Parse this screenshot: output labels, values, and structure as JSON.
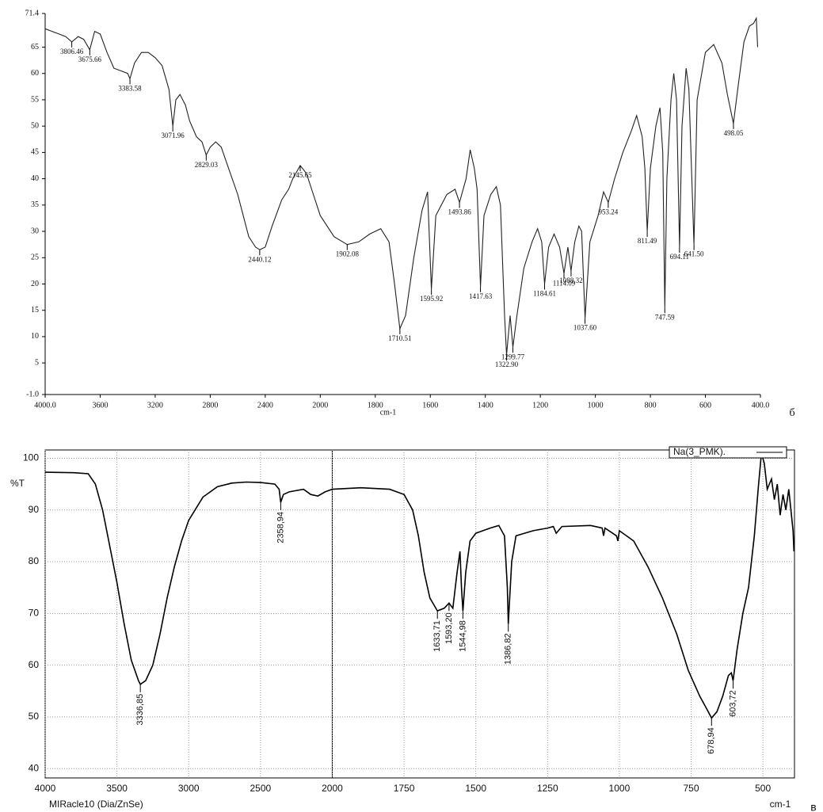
{
  "chart_data": [
    {
      "type": "line",
      "xlabel": "cm-1",
      "caption": "б",
      "xlim": [
        4000,
        400
      ],
      "ylim": [
        -1,
        71.4
      ],
      "x_scale_break": 2000,
      "grid": false,
      "xticks": [
        {
          "value": 4000,
          "label": "4000.0"
        },
        3600,
        3200,
        2800,
        2400,
        2000,
        1800,
        1600,
        1400,
        1200,
        1000,
        800,
        600,
        {
          "value": 400,
          "label": "400.0"
        }
      ],
      "yticks": [
        {
          "value": -1,
          "label": "-1.0"
        },
        5,
        10,
        15,
        20,
        25,
        30,
        35,
        40,
        45,
        50,
        55,
        60,
        65,
        71.4
      ],
      "x": [
        4000,
        3950,
        3900,
        3850,
        3806.46,
        3760,
        3720,
        3675.66,
        3640,
        3600,
        3550,
        3500,
        3450,
        3400,
        3383.58,
        3350,
        3300,
        3250,
        3200,
        3150,
        3100,
        3071.96,
        3050,
        3020,
        2980,
        2950,
        2900,
        2860,
        2829.03,
        2800,
        2760,
        2720,
        2680,
        2600,
        2520,
        2470,
        2440.12,
        2400,
        2350,
        2280,
        2230,
        2200,
        2145.65,
        2100,
        2050,
        2000,
        1950,
        1902.08,
        1860,
        1820,
        1780,
        1750,
        1730,
        1710.51,
        1690,
        1660,
        1630,
        1610,
        1595.92,
        1580,
        1540,
        1510,
        1493.86,
        1470,
        1455,
        1440,
        1430,
        1417.63,
        1405,
        1380,
        1360,
        1345,
        1330,
        1322.9,
        1310,
        1299.77,
        1285,
        1260,
        1230,
        1210,
        1195,
        1184.61,
        1170,
        1150,
        1130,
        1114.09,
        1100,
        1088.32,
        1075,
        1060,
        1050,
        1037.6,
        1020,
        990,
        970,
        953.24,
        930,
        900,
        870,
        850,
        830,
        820,
        811.49,
        800,
        780,
        765,
        755,
        747.59,
        740,
        725,
        715,
        705,
        694.11,
        685,
        670,
        660,
        641.5,
        630,
        600,
        570,
        540,
        520,
        498.05,
        480,
        460,
        440,
        425,
        415,
        410
      ],
      "series": [
        {
          "color": "#222222",
          "values": [
            68.5,
            68,
            67.5,
            67,
            66,
            67,
            66.5,
            64.5,
            68,
            67.5,
            64,
            61,
            60.5,
            60,
            59,
            62,
            64,
            64,
            63,
            61.5,
            57,
            50,
            55,
            56,
            54,
            51,
            48,
            47,
            44.5,
            46,
            47,
            46,
            43,
            37,
            29,
            27,
            26.5,
            27,
            31,
            36,
            38,
            40,
            42.5,
            41,
            37,
            33,
            29,
            27.5,
            28,
            29.5,
            30.5,
            28,
            20,
            11.5,
            14,
            25,
            34,
            37.5,
            19,
            33,
            37,
            38,
            35.5,
            40,
            45.5,
            42,
            38,
            19.5,
            33,
            37,
            38.5,
            35,
            14,
            6.5,
            14,
            8,
            14,
            23,
            28,
            30.5,
            28,
            20,
            27,
            29.5,
            27,
            22,
            27,
            22.5,
            28,
            31,
            30,
            13.5,
            28,
            33,
            37.5,
            35.5,
            40,
            45,
            49,
            52,
            48,
            42,
            30,
            42,
            50,
            53.5,
            45,
            15.5,
            40,
            55,
            60,
            55,
            27,
            50,
            61,
            57,
            27.5,
            55,
            64,
            65.5,
            62,
            56,
            50.5,
            58,
            66,
            69,
            69.5,
            70.5,
            65
          ]
        }
      ],
      "peaks": [
        {
          "value": 3806.46,
          "label": "3806.46"
        },
        {
          "value": 3675.66,
          "label": "3675.66"
        },
        {
          "value": 3383.58,
          "label": "3383.58"
        },
        {
          "value": 3071.96,
          "label": "3071.96"
        },
        {
          "value": 2829.03,
          "label": "2829.03"
        },
        {
          "value": 2440.12,
          "label": "2440.12"
        },
        {
          "value": 2145.65,
          "label": "2145.65"
        },
        {
          "value": 1902.08,
          "label": "1902.08"
        },
        {
          "value": 1710.51,
          "label": "1710.51"
        },
        {
          "value": 1595.92,
          "label": "1595.92"
        },
        {
          "value": 1493.86,
          "label": "1493.86"
        },
        {
          "value": 1417.63,
          "label": "1417.63"
        },
        {
          "value": 1322.9,
          "label": "1322.90"
        },
        {
          "value": 1299.77,
          "label": "1299.77"
        },
        {
          "value": 1184.61,
          "label": "1184.61"
        },
        {
          "value": 1114.09,
          "label": "1114.09"
        },
        {
          "value": 1088.32,
          "label": "1088.32"
        },
        {
          "value": 1037.6,
          "label": "1037.60"
        },
        {
          "value": 953.24,
          "label": "953.24"
        },
        {
          "value": 811.49,
          "label": "811.49"
        },
        {
          "value": 747.59,
          "label": "747.59"
        },
        {
          "value": 694.11,
          "label": "694.11"
        },
        {
          "value": 641.5,
          "label": "641.50"
        },
        {
          "value": 498.05,
          "label": "498.05"
        }
      ]
    },
    {
      "type": "line",
      "xlabel": "cm-1",
      "ylabel": "%T",
      "caption": "в",
      "note": "MIRacle10 (Dia/ZnSe)",
      "xlim": [
        4000,
        390
      ],
      "ylim": [
        38.2,
        101.6
      ],
      "x_scale_break": 2000,
      "grid": true,
      "xticks": [
        4000,
        3500,
        3000,
        2500,
        2000,
        1750,
        1500,
        1250,
        1000,
        750,
        500
      ],
      "yticks": [
        40,
        50,
        60,
        70,
        80,
        90,
        100
      ],
      "x": [
        4000,
        3800,
        3700,
        3650,
        3600,
        3550,
        3500,
        3450,
        3400,
        3350,
        3336.85,
        3300,
        3250,
        3200,
        3150,
        3100,
        3050,
        3000,
        2900,
        2800,
        2700,
        2600,
        2500,
        2400,
        2370,
        2358.94,
        2340,
        2300,
        2200,
        2150,
        2100,
        2050,
        2000,
        1900,
        1800,
        1750,
        1720,
        1700,
        1680,
        1660,
        1633.71,
        1610,
        1593.2,
        1580,
        1565,
        1555,
        1550,
        1544.98,
        1535,
        1520,
        1500,
        1450,
        1420,
        1400,
        1390,
        1386.82,
        1375,
        1360,
        1300,
        1250,
        1230,
        1220,
        1200,
        1100,
        1060,
        1055,
        1050,
        1010,
        1005,
        1000,
        950,
        900,
        850,
        800,
        760,
        720,
        700,
        678.94,
        660,
        640,
        620,
        610,
        603.72,
        590,
        570,
        550,
        530,
        515,
        505,
        495,
        485,
        470,
        460,
        450,
        440,
        430,
        420,
        410,
        395,
        392
      ],
      "series": [
        {
          "name": "Na(3_PMK).",
          "color": "#000000",
          "values": [
            97.3,
            97.2,
            97,
            95,
            90,
            83,
            76,
            68,
            61,
            57,
            56.3,
            57,
            60,
            66,
            73,
            79,
            84,
            88,
            92.5,
            94.5,
            95.2,
            95.4,
            95.3,
            95,
            94,
            91.5,
            93,
            93.5,
            94,
            93,
            92.7,
            93.5,
            94,
            94.3,
            94,
            93,
            90,
            85,
            78,
            73,
            70.5,
            71,
            72,
            71,
            78,
            82,
            75,
            70.5,
            78,
            84,
            85.5,
            86.5,
            87,
            85,
            75,
            68,
            80,
            85,
            86,
            86.5,
            86.8,
            85.5,
            86.8,
            87,
            86.5,
            85,
            86.5,
            85,
            84,
            86,
            84,
            79,
            73,
            66,
            59,
            54,
            52,
            49.8,
            51,
            54,
            58,
            58.5,
            57,
            63,
            70,
            75,
            85,
            95,
            101,
            99,
            94,
            96,
            92,
            95,
            89,
            93,
            90,
            94,
            86,
            82
          ]
        }
      ],
      "peaks": [
        {
          "value": 3336.85,
          "label": "3336,85"
        },
        {
          "value": 2358.94,
          "label": "2358,94"
        },
        {
          "value": 1633.71,
          "label": "1633,71"
        },
        {
          "value": 1593.2,
          "label": "1593,20"
        },
        {
          "value": 1544.98,
          "label": "1544,98"
        },
        {
          "value": 1386.82,
          "label": "1386,82"
        },
        {
          "value": 678.94,
          "label": "678,94"
        },
        {
          "value": 603.72,
          "label": "603,72"
        }
      ]
    }
  ]
}
